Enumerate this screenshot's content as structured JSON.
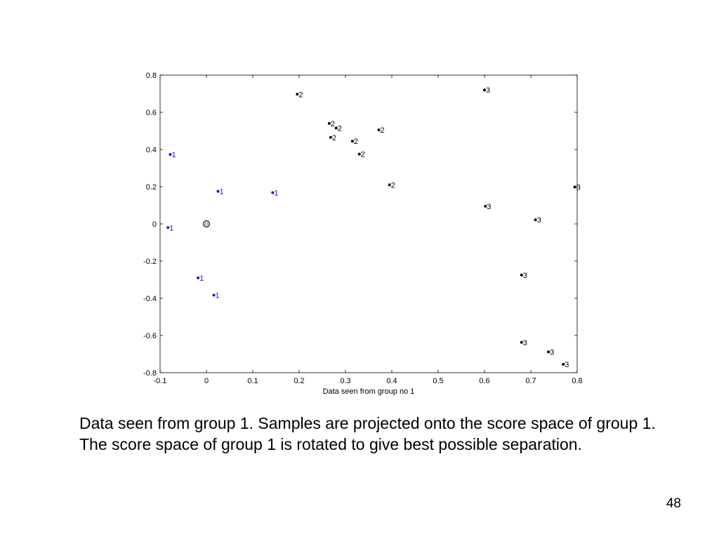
{
  "chart_data": {
    "type": "scatter",
    "xlabel": "Data seen from group no 1",
    "ylabel": "",
    "xlim": [
      -0.1,
      0.8
    ],
    "ylim": [
      -0.8,
      0.8
    ],
    "x_ticks": [
      "-0.1",
      "0",
      "0.1",
      "0.2",
      "0.3",
      "0.4",
      "0.5",
      "0.6",
      "0.7",
      "0.8"
    ],
    "y_ticks": [
      "-0.8",
      "-0.6",
      "-0.4",
      "-0.2",
      "0",
      "0.2",
      "0.4",
      "0.6",
      "0.8"
    ],
    "grid": false,
    "series": [
      {
        "label": "1",
        "color": "#1a1acc",
        "points": [
          {
            "x": -0.078,
            "y": 0.373
          },
          {
            "x": -0.083,
            "y": -0.02
          },
          {
            "x": 0.025,
            "y": 0.175
          },
          {
            "x": 0.143,
            "y": 0.168
          },
          {
            "x": -0.018,
            "y": -0.29
          },
          {
            "x": 0.016,
            "y": -0.383
          }
        ]
      },
      {
        "label": "2",
        "color": "#000000",
        "points": [
          {
            "x": 0.196,
            "y": 0.697
          },
          {
            "x": 0.265,
            "y": 0.54
          },
          {
            "x": 0.28,
            "y": 0.515
          },
          {
            "x": 0.268,
            "y": 0.465
          },
          {
            "x": 0.372,
            "y": 0.505
          },
          {
            "x": 0.315,
            "y": 0.445
          },
          {
            "x": 0.33,
            "y": 0.375
          },
          {
            "x": 0.395,
            "y": 0.21
          }
        ]
      },
      {
        "label": "3",
        "color": "#000000",
        "points": [
          {
            "x": 0.6,
            "y": 0.72
          },
          {
            "x": 0.795,
            "y": 0.198
          },
          {
            "x": 0.602,
            "y": 0.095
          },
          {
            "x": 0.71,
            "y": 0.022
          },
          {
            "x": 0.68,
            "y": -0.275
          },
          {
            "x": 0.68,
            "y": -0.637
          },
          {
            "x": 0.738,
            "y": -0.688
          },
          {
            "x": 0.77,
            "y": -0.755
          }
        ]
      }
    ],
    "markers": [
      {
        "x": 0.0,
        "y": 0.0,
        "shape": "circle",
        "fill": "#a8cfe0"
      }
    ]
  },
  "caption": "Data seen from group 1. Samples are projected onto the score space of group 1. The score space of group 1 is rotated to give best possible separation.",
  "page_number": "48"
}
